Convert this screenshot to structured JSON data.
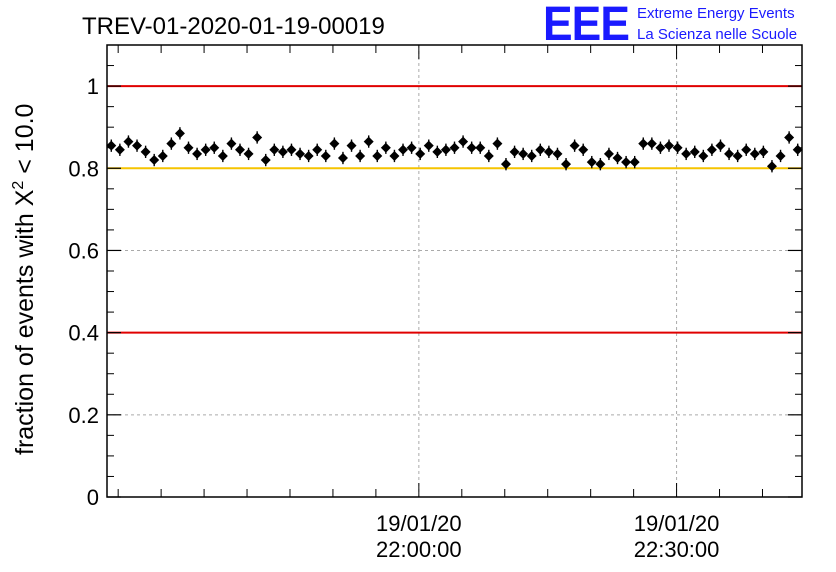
{
  "chart_data": {
    "type": "scatter",
    "title": "TREV-01-2020-01-19-00019",
    "ylabel": "fraction of events with Χ",
    "ylabel_superscript": "2",
    "ylabel_suffix": " < 10.0",
    "xlabel": "",
    "ylim": [
      0,
      1.1
    ],
    "yticks": [
      "0",
      "0.2",
      "0.4",
      "0.6",
      "0.8",
      "1"
    ],
    "xticks": [
      {
        "date": "19/01/20",
        "time": "22:00:00"
      },
      {
        "date": "19/01/20",
        "time": "22:30:00"
      }
    ],
    "x_range_minutes_from_2130": [
      -6.3,
      74.6
    ],
    "reference_lines": [
      {
        "y": 1.0,
        "color": "#e00000"
      },
      {
        "y": 0.8,
        "color": "#f5c400"
      },
      {
        "y": 0.4,
        "color": "#e00000"
      }
    ],
    "grid": true,
    "series": [
      {
        "marker": "diamond",
        "color": "#000000",
        "values": [
          0.855,
          0.845,
          0.865,
          0.855,
          0.84,
          0.82,
          0.83,
          0.86,
          0.885,
          0.85,
          0.835,
          0.845,
          0.85,
          0.83,
          0.86,
          0.845,
          0.835,
          0.875,
          0.82,
          0.845,
          0.84,
          0.845,
          0.835,
          0.83,
          0.845,
          0.83,
          0.86,
          0.825,
          0.855,
          0.83,
          0.865,
          0.83,
          0.85,
          0.83,
          0.845,
          0.85,
          0.835,
          0.855,
          0.84,
          0.845,
          0.85,
          0.865,
          0.85,
          0.85,
          0.83,
          0.86,
          0.81,
          0.84,
          0.835,
          0.83,
          0.845,
          0.84,
          0.835,
          0.81,
          0.855,
          0.845,
          0.815,
          0.81,
          0.835,
          0.825,
          0.815,
          0.815,
          0.86,
          0.86,
          0.85,
          0.855,
          0.85,
          0.835,
          0.84,
          0.83,
          0.845,
          0.855,
          0.835,
          0.83,
          0.845,
          0.835,
          0.84,
          0.805,
          0.83,
          0.875,
          0.845
        ],
        "errors": 0.015
      }
    ]
  },
  "logo": {
    "text": "EEE",
    "line1": "Extreme Energy Events",
    "line2": "La Scienza nelle Scuole",
    "color": "#1a1aff"
  }
}
